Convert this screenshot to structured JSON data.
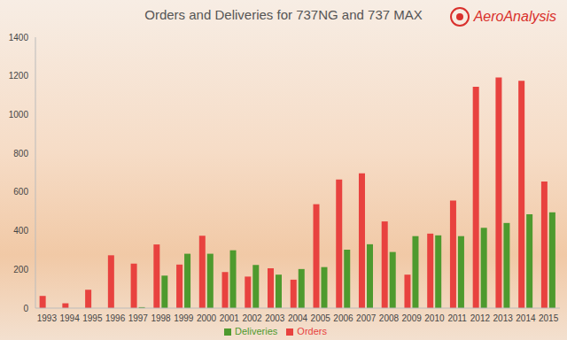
{
  "chart_data": {
    "type": "bar",
    "title": "Orders and Deliveries for 737NG and 737 MAX",
    "annotations": [
      "AeroAnalysis"
    ],
    "categories": [
      "1993",
      "1994",
      "1995",
      "1996",
      "1997",
      "1998",
      "1999",
      "2000",
      "2001",
      "2002",
      "2003",
      "2004",
      "2005",
      "2006",
      "2007",
      "2008",
      "2009",
      "2010",
      "2011",
      "2012",
      "2013",
      "2014",
      "2015"
    ],
    "series": [
      {
        "name": "Orders",
        "color": "#e8423f",
        "values": [
          63,
          25,
          95,
          273,
          230,
          329,
          225,
          374,
          187,
          163,
          206,
          147,
          537,
          664,
          697,
          448,
          173,
          385,
          556,
          1144,
          1192,
          1175,
          654
        ]
      },
      {
        "name": "Deliveries",
        "color": "#4e9a2e",
        "values": [
          0,
          0,
          0,
          0,
          5,
          168,
          281,
          281,
          299,
          223,
          173,
          202,
          212,
          302,
          330,
          290,
          372,
          376,
          372,
          415,
          440,
          485,
          495
        ]
      }
    ],
    "ylim": [
      0,
      1400
    ],
    "yticks": [
      0,
      200,
      400,
      600,
      800,
      1000,
      1200,
      1400
    ],
    "grid": false,
    "legend": "bottom"
  }
}
